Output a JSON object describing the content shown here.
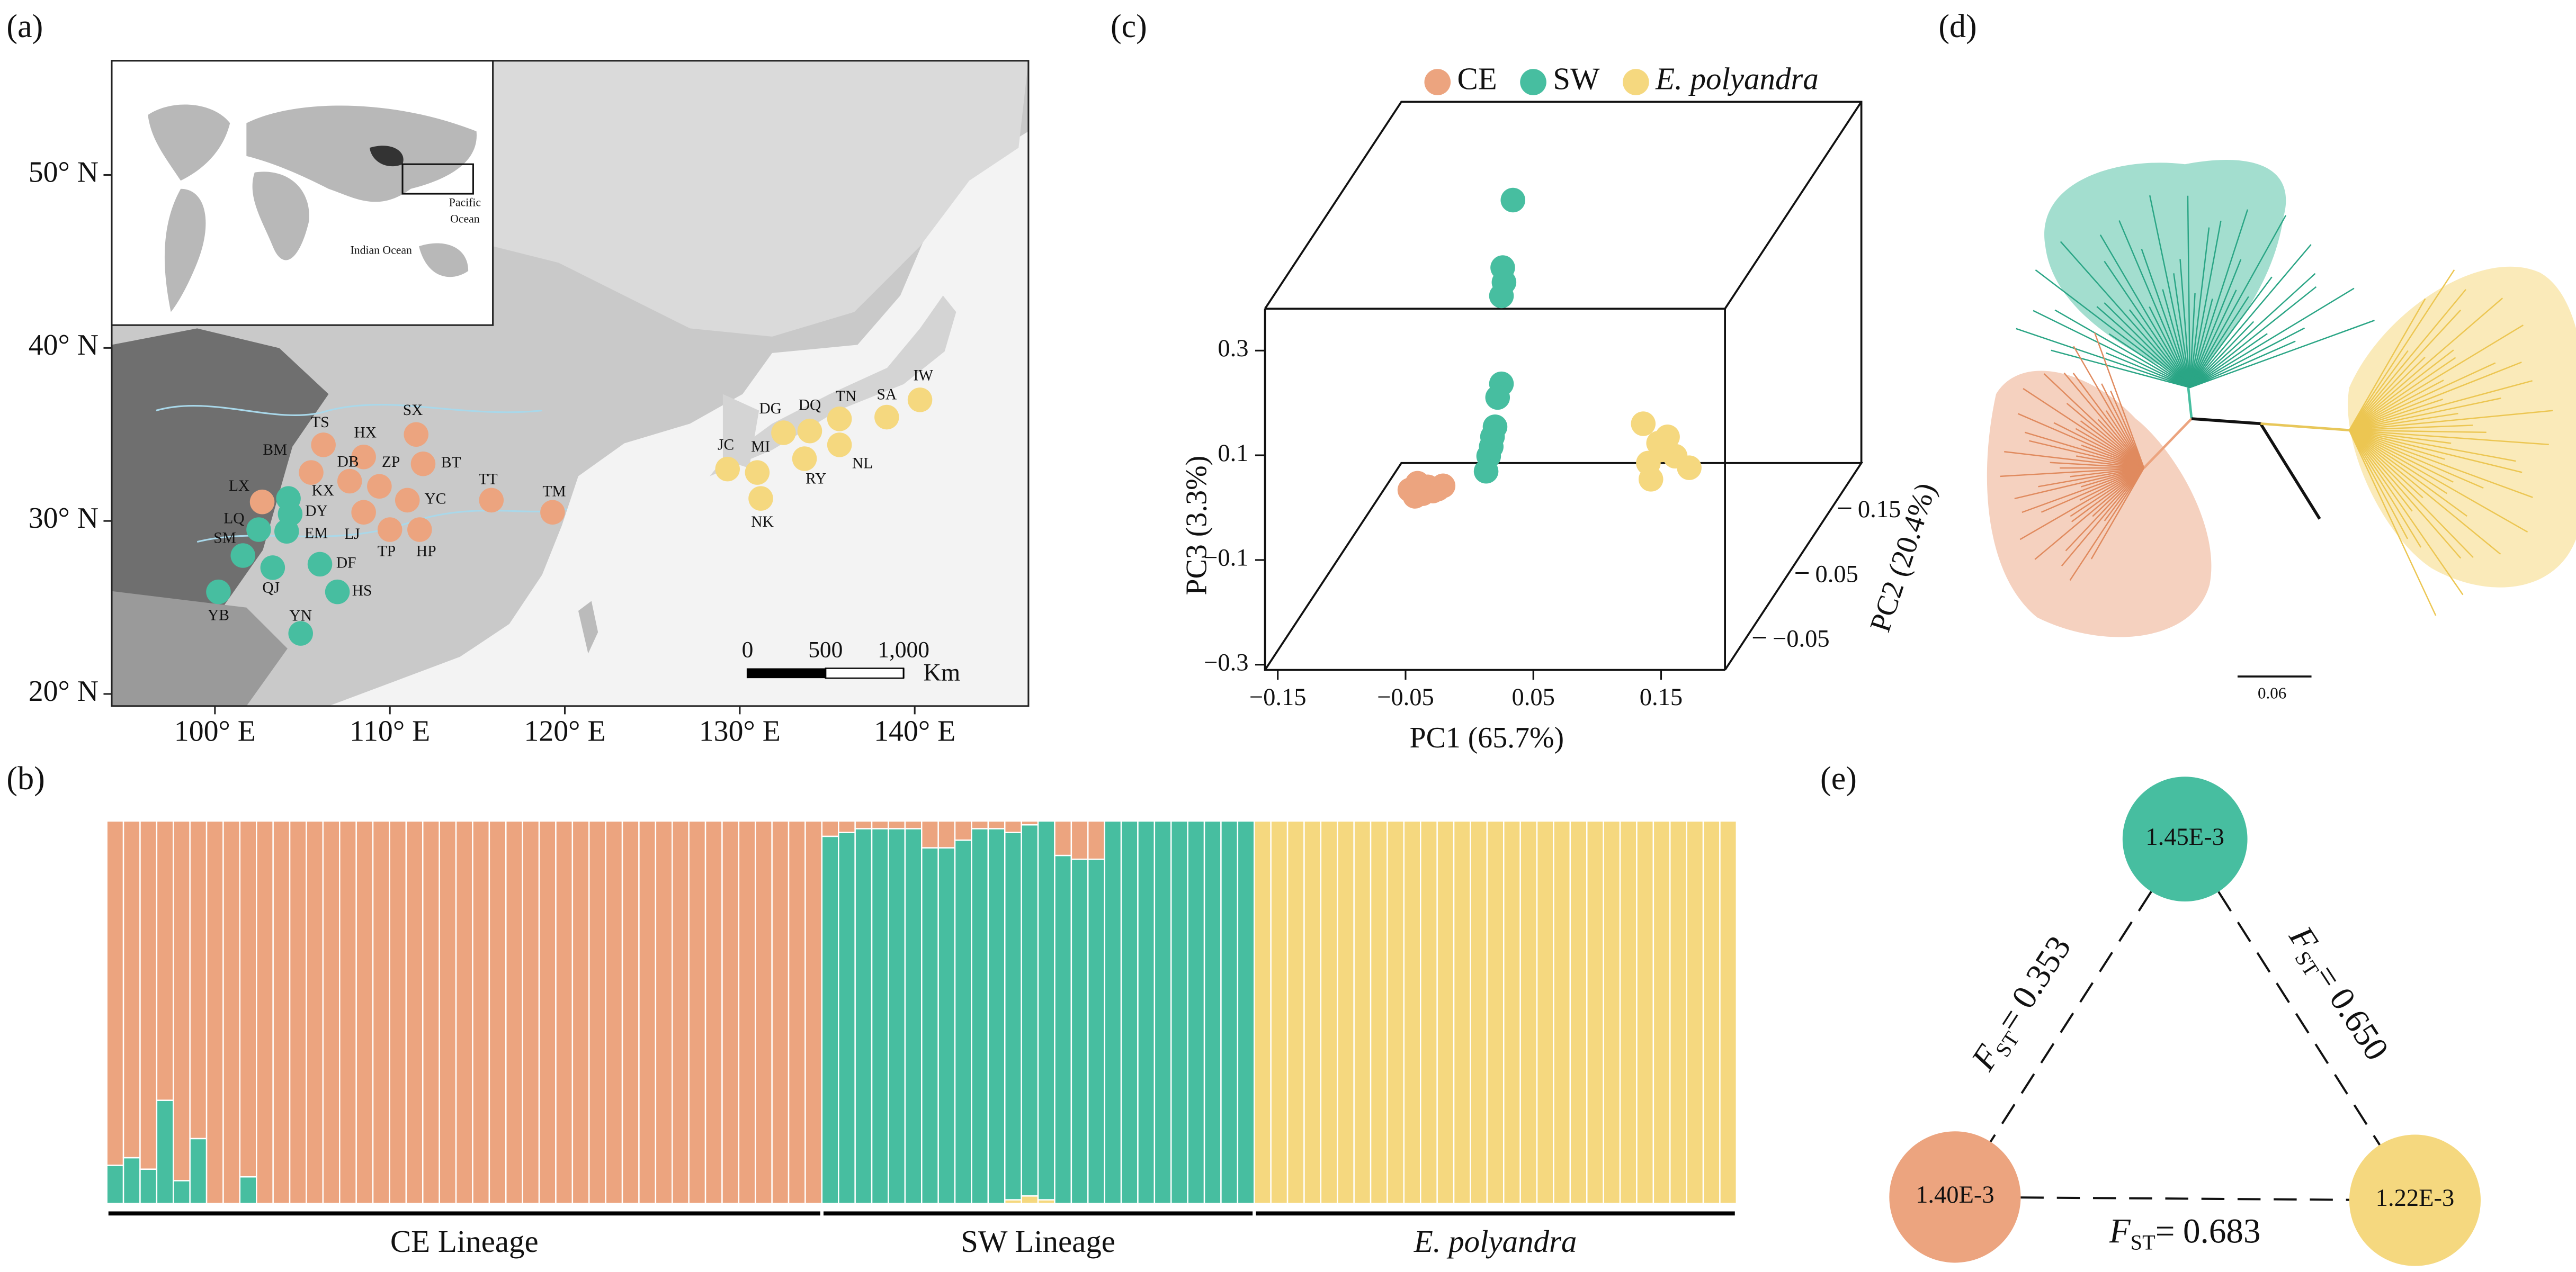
{
  "panel_labels": [
    "(a)",
    "(b)",
    "(c)",
    "(d)",
    "(e)"
  ],
  "lineages": [
    {
      "name": "CE",
      "color": "#eca47f"
    },
    {
      "name": "SW",
      "color": "#47bea0"
    },
    {
      "name": "E. polyandra",
      "color": "#f5d87f",
      "italic": true
    }
  ],
  "map": {
    "type": "map",
    "xlim": [
      94.1,
      146.5
    ],
    "ylim": [
      19.3,
      56.6
    ],
    "xticks": [
      {
        "value": 100,
        "label": "100° E"
      },
      {
        "value": 110,
        "label": "110° E"
      },
      {
        "value": 120,
        "label": "120° E"
      },
      {
        "value": 130,
        "label": "130° E"
      },
      {
        "value": 140,
        "label": "140° E"
      }
    ],
    "yticks": [
      {
        "value": 20,
        "label": "20° N"
      },
      {
        "value": 30,
        "label": "30° N"
      },
      {
        "value": 40,
        "label": "40° N"
      },
      {
        "value": 50,
        "label": "50° N"
      }
    ],
    "inset": {
      "pacific": [
        "Pacific",
        "Ocean"
      ],
      "indian": "Indian Ocean"
    },
    "scale_bar": {
      "ticks": [
        0,
        500,
        {
          "value": 1000,
          "label": "1,000"
        }
      ],
      "unit": "Km"
    },
    "sites": [
      {
        "code": "TS",
        "lon": 106.2,
        "lat": 34.4,
        "lineage": "CE"
      },
      {
        "code": "SX",
        "lon": 111.5,
        "lat": 35.0,
        "lineage": "CE"
      },
      {
        "code": "HX",
        "lon": 108.5,
        "lat": 33.7,
        "lineage": "CE"
      },
      {
        "code": "BM",
        "lon": 105.5,
        "lat": 32.8,
        "lineage": "CE"
      },
      {
        "code": "DB",
        "lon": 107.7,
        "lat": 32.3,
        "lineage": "CE"
      },
      {
        "code": "ZP",
        "lon": 109.4,
        "lat": 32.0,
        "lineage": "CE"
      },
      {
        "code": "BT",
        "lon": 111.9,
        "lat": 33.3,
        "lineage": "CE"
      },
      {
        "code": "LX",
        "lon": 102.7,
        "lat": 31.1,
        "lineage": "CE"
      },
      {
        "code": "KX",
        "lon": 104.2,
        "lat": 31.3,
        "lineage": "SW"
      },
      {
        "code": "DY",
        "lon": 104.3,
        "lat": 30.4,
        "lineage": "SW"
      },
      {
        "code": "EM",
        "lon": 104.1,
        "lat": 29.4,
        "lineage": "SW"
      },
      {
        "code": "LQ",
        "lon": 102.5,
        "lat": 29.5,
        "lineage": "SW"
      },
      {
        "code": "SM",
        "lon": 101.6,
        "lat": 28.0,
        "lineage": "SW"
      },
      {
        "code": "QJ",
        "lon": 103.3,
        "lat": 27.3,
        "lineage": "SW"
      },
      {
        "code": "DF",
        "lon": 106.0,
        "lat": 27.5,
        "lineage": "SW"
      },
      {
        "code": "HS",
        "lon": 107.0,
        "lat": 25.9,
        "lineage": "SW"
      },
      {
        "code": "YB",
        "lon": 100.2,
        "lat": 25.9,
        "lineage": "SW"
      },
      {
        "code": "YN",
        "lon": 104.9,
        "lat": 23.5,
        "lineage": "SW"
      },
      {
        "code": "YC",
        "lon": 111.0,
        "lat": 31.2,
        "lineage": "CE"
      },
      {
        "code": "LJ",
        "lon": 108.5,
        "lat": 30.5,
        "lineage": "CE"
      },
      {
        "code": "TP",
        "lon": 110.0,
        "lat": 29.5,
        "lineage": "CE"
      },
      {
        "code": "HP",
        "lon": 111.7,
        "lat": 29.5,
        "lineage": "CE"
      },
      {
        "code": "TT",
        "lon": 115.8,
        "lat": 31.2,
        "lineage": "CE"
      },
      {
        "code": "TM",
        "lon": 119.3,
        "lat": 30.5,
        "lineage": "CE"
      },
      {
        "code": "JC",
        "lon": 129.3,
        "lat": 33.0,
        "lineage": "E. polyandra"
      },
      {
        "code": "MI",
        "lon": 131.0,
        "lat": 32.8,
        "lineage": "E. polyandra"
      },
      {
        "code": "NK",
        "lon": 131.2,
        "lat": 31.3,
        "lineage": "E. polyandra"
      },
      {
        "code": "DG",
        "lon": 132.5,
        "lat": 35.1,
        "lineage": "E. polyandra"
      },
      {
        "code": "DQ",
        "lon": 134.0,
        "lat": 35.2,
        "lineage": "E. polyandra"
      },
      {
        "code": "RY",
        "lon": 133.7,
        "lat": 33.6,
        "lineage": "E. polyandra"
      },
      {
        "code": "TN",
        "lon": 135.7,
        "lat": 35.9,
        "lineage": "E. polyandra"
      },
      {
        "code": "NL",
        "lon": 135.7,
        "lat": 34.4,
        "lineage": "E. polyandra"
      },
      {
        "code": "SA",
        "lon": 138.4,
        "lat": 36.0,
        "lineage": "E. polyandra"
      },
      {
        "code": "IW",
        "lon": 140.3,
        "lat": 37.0,
        "lineage": "E. polyandra"
      }
    ]
  },
  "structure": {
    "type": "stacked-bar",
    "groups": [
      {
        "label": "CE Lineage",
        "values": [
          [
            0.9,
            0.1,
            0
          ],
          [
            0.88,
            0.12,
            0
          ],
          [
            0.91,
            0.09,
            0
          ],
          [
            0.73,
            0.27,
            0
          ],
          [
            0.94,
            0.06,
            0
          ],
          [
            0.83,
            0.17,
            0
          ],
          [
            1,
            0,
            0
          ],
          [
            1,
            0,
            0
          ],
          [
            0.93,
            0.07,
            0
          ],
          [
            1,
            0,
            0
          ],
          [
            1,
            0,
            0
          ],
          [
            1,
            0,
            0
          ],
          [
            1,
            0,
            0
          ],
          [
            1,
            0,
            0
          ],
          [
            1,
            0,
            0
          ],
          [
            1,
            0,
            0
          ],
          [
            1,
            0,
            0
          ],
          [
            1,
            0,
            0
          ],
          [
            1,
            0,
            0
          ],
          [
            1,
            0,
            0
          ],
          [
            1,
            0,
            0
          ],
          [
            1,
            0,
            0
          ],
          [
            1,
            0,
            0
          ],
          [
            1,
            0,
            0
          ],
          [
            1,
            0,
            0
          ],
          [
            1,
            0,
            0
          ],
          [
            1,
            0,
            0
          ],
          [
            1,
            0,
            0
          ],
          [
            1,
            0,
            0
          ],
          [
            1,
            0,
            0
          ],
          [
            1,
            0,
            0
          ],
          [
            1,
            0,
            0
          ],
          [
            1,
            0,
            0
          ],
          [
            1,
            0,
            0
          ],
          [
            1,
            0,
            0
          ],
          [
            1,
            0,
            0
          ],
          [
            1,
            0,
            0
          ],
          [
            1,
            0,
            0
          ],
          [
            1,
            0,
            0
          ],
          [
            1,
            0,
            0
          ],
          [
            1,
            0,
            0
          ],
          [
            1,
            0,
            0
          ],
          [
            1,
            0,
            0
          ]
        ]
      },
      {
        "label": "SW Lineage",
        "values": [
          [
            0.04,
            0.96,
            0
          ],
          [
            0.03,
            0.97,
            0
          ],
          [
            0.02,
            0.98,
            0
          ],
          [
            0.02,
            0.98,
            0
          ],
          [
            0.02,
            0.98,
            0
          ],
          [
            0.02,
            0.98,
            0
          ],
          [
            0.07,
            0.93,
            0
          ],
          [
            0.07,
            0.93,
            0
          ],
          [
            0.05,
            0.95,
            0
          ],
          [
            0.02,
            0.98,
            0
          ],
          [
            0.02,
            0.98,
            0
          ],
          [
            0.03,
            0.96,
            0.01
          ],
          [
            0.01,
            0.97,
            0.02
          ],
          [
            0,
            0.99,
            0.01
          ],
          [
            0.09,
            0.91,
            0
          ],
          [
            0.1,
            0.9,
            0
          ],
          [
            0.1,
            0.9,
            0
          ],
          [
            0,
            1,
            0
          ],
          [
            0,
            1,
            0
          ],
          [
            0,
            1,
            0
          ],
          [
            0,
            1,
            0
          ],
          [
            0,
            1,
            0
          ],
          [
            0,
            1,
            0
          ],
          [
            0,
            1,
            0
          ],
          [
            0,
            1,
            0
          ],
          [
            0,
            1,
            0
          ]
        ]
      },
      {
        "label": "E. polyandra",
        "italic": true,
        "values": [
          [
            0,
            0,
            1
          ],
          [
            0,
            0,
            1
          ],
          [
            0,
            0,
            1
          ],
          [
            0,
            0,
            1
          ],
          [
            0,
            0,
            1
          ],
          [
            0,
            0,
            1
          ],
          [
            0,
            0,
            1
          ],
          [
            0,
            0,
            1
          ],
          [
            0,
            0,
            1
          ],
          [
            0,
            0,
            1
          ],
          [
            0,
            0,
            1
          ],
          [
            0,
            0,
            1
          ],
          [
            0,
            0,
            1
          ],
          [
            0,
            0,
            1
          ],
          [
            0,
            0,
            1
          ],
          [
            0,
            0,
            1
          ],
          [
            0,
            0,
            1
          ],
          [
            0,
            0,
            1
          ],
          [
            0,
            0,
            1
          ],
          [
            0,
            0,
            1
          ],
          [
            0,
            0,
            1
          ],
          [
            0,
            0,
            1
          ],
          [
            0,
            0,
            1
          ],
          [
            0,
            0,
            1
          ],
          [
            0,
            0,
            1
          ],
          [
            0,
            0,
            1
          ],
          [
            0,
            0,
            1
          ],
          [
            0,
            0,
            1
          ],
          [
            0,
            0,
            1
          ]
        ]
      }
    ]
  },
  "pca": {
    "type": "scatter3d",
    "x_label": "PC1 (65.7%)",
    "y_label": "PC3 (3.3%)",
    "z_label": "PC2 (20.4%)",
    "xlim": [
      -0.16,
      0.2
    ],
    "ylim": [
      -0.31,
      0.38
    ],
    "zlim": [
      -0.1,
      0.22
    ],
    "xticks": [
      {
        "value": -0.15,
        "label": "−0.15"
      },
      {
        "value": -0.05,
        "label": "−0.05"
      },
      0.05,
      0.15
    ],
    "yticks": [
      {
        "value": -0.3,
        "label": "−0.3"
      },
      {
        "value": -0.1,
        "label": "−0.1"
      },
      0.1,
      0.3
    ],
    "zticks": [
      {
        "value": -0.05,
        "label": "−0.05"
      },
      0.05,
      0.15
    ],
    "series": [
      {
        "x": [
          -0.12,
          -0.114,
          -0.11,
          -0.106,
          -0.102,
          -0.098,
          -0.094,
          -0.116
        ],
        "y": [
          -0.238,
          -0.225,
          -0.245,
          -0.232,
          -0.24,
          -0.236,
          -0.23,
          -0.25
        ],
        "z": [
          0.12,
          0.12,
          0.12,
          0.12,
          0.12,
          0.12,
          0.12,
          0.12
        ]
      },
      {
        "x": [
          -0.066,
          -0.074,
          -0.073,
          -0.075,
          -0.075,
          -0.08,
          -0.082,
          -0.083,
          -0.085,
          -0.087,
          -0.078
        ],
        "y": [
          0.217,
          0.088,
          0.06,
          0.034,
          -0.134,
          -0.216,
          -0.235,
          -0.254,
          -0.272,
          -0.301,
          -0.16
        ],
        "z": [
          0.2,
          0.2,
          0.2,
          0.2,
          0.2,
          0.2,
          0.2,
          0.2,
          0.2,
          0.2,
          0.2
        ]
      },
      {
        "x": [
          0.086,
          0.098,
          0.111,
          0.122,
          0.092,
          0.1,
          0.09,
          0.105
        ],
        "y": [
          -0.025,
          -0.062,
          -0.087,
          -0.109,
          -0.131,
          -0.075,
          -0.1,
          -0.05
        ],
        "z": [
          0.05,
          0.05,
          0.05,
          0.05,
          0.05,
          0.05,
          0.05,
          0.05
        ]
      }
    ]
  },
  "tree": {
    "scale": 0.06
  },
  "fst": {
    "nodes": [
      {
        "lineage": "SW",
        "diversity": {
          "value": 0.00145,
          "label": "1.45E-3"
        }
      },
      {
        "lineage": "CE",
        "diversity": {
          "value": 0.0014,
          "label": "1.40E-3"
        }
      },
      {
        "lineage": "E. polyandra",
        "diversity": {
          "value": 0.00122,
          "label": "1.22E-3"
        }
      }
    ],
    "edges": [
      {
        "symbol": "F",
        "subscript": "ST",
        "relation": "=",
        "value": 0.353
      },
      {
        "symbol": "F",
        "subscript": "ST",
        "relation": "=",
        "value": {
          "value": 0.65,
          "label": "0.650"
        }
      },
      {
        "symbol": "F",
        "subscript": "ST",
        "relation": "=",
        "value": 0.683
      }
    ]
  }
}
